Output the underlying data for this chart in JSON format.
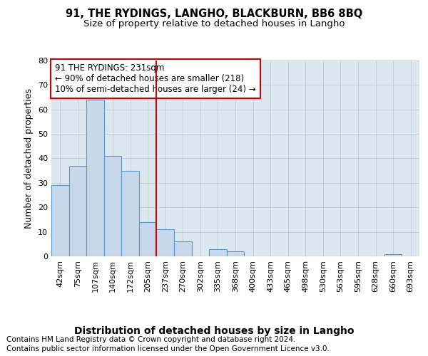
{
  "title": "91, THE RYDINGS, LANGHO, BLACKBURN, BB6 8BQ",
  "subtitle": "Size of property relative to detached houses in Langho",
  "xlabel": "Distribution of detached houses by size in Langho",
  "ylabel": "Number of detached properties",
  "categories": [
    "42sqm",
    "75sqm",
    "107sqm",
    "140sqm",
    "172sqm",
    "205sqm",
    "237sqm",
    "270sqm",
    "302sqm",
    "335sqm",
    "368sqm",
    "400sqm",
    "433sqm",
    "465sqm",
    "498sqm",
    "530sqm",
    "563sqm",
    "595sqm",
    "628sqm",
    "660sqm",
    "693sqm"
  ],
  "values": [
    29,
    37,
    64,
    41,
    35,
    14,
    11,
    6,
    0,
    3,
    2,
    0,
    0,
    0,
    0,
    0,
    0,
    0,
    0,
    1,
    0
  ],
  "bar_color": "#c8d8ea",
  "bar_edge_color": "#5599cc",
  "vline_x": 6,
  "vline_color": "#cc0000",
  "annotation_text": "91 THE RYDINGS: 231sqm\n← 90% of detached houses are smaller (218)\n10% of semi-detached houses are larger (24) →",
  "annotation_box_color": "#ffffff",
  "annotation_box_edge": "#cc0000",
  "ylim": [
    0,
    80
  ],
  "yticks": [
    0,
    10,
    20,
    30,
    40,
    50,
    60,
    70,
    80
  ],
  "grid_color": "#c0ccd8",
  "background_color": "#dce8f0",
  "footer_line1": "Contains HM Land Registry data © Crown copyright and database right 2024.",
  "footer_line2": "Contains public sector information licensed under the Open Government Licence v3.0.",
  "title_fontsize": 10.5,
  "subtitle_fontsize": 9.5,
  "xlabel_fontsize": 10,
  "ylabel_fontsize": 9,
  "tick_fontsize": 8,
  "annotation_fontsize": 8.5,
  "footer_fontsize": 7.5
}
